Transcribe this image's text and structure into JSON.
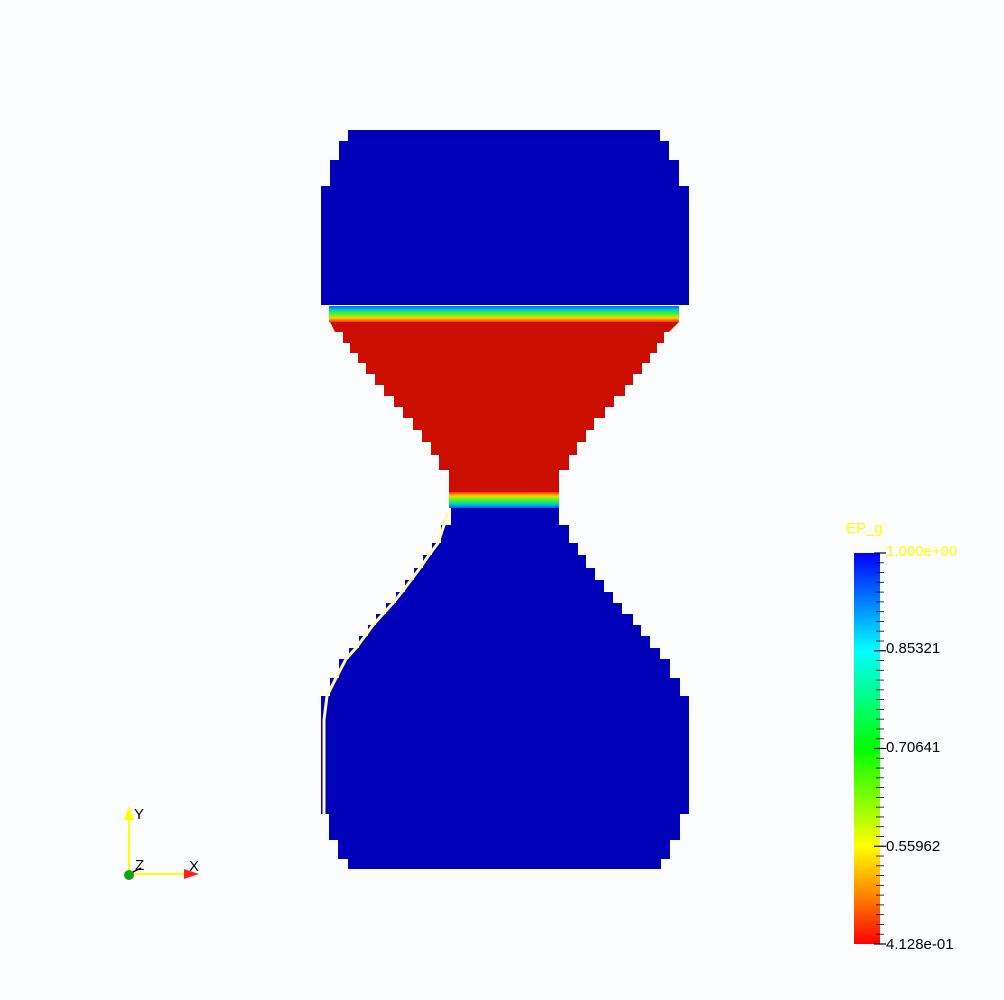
{
  "scalar_bar": {
    "title": "EP_g",
    "ticks": [
      "1.000e+00",
      "0.85321",
      "0.70641",
      "0.55962",
      "4.128e-01"
    ],
    "tick_values": [
      1.0,
      0.85321,
      0.70641,
      0.55962,
      0.4128
    ],
    "range": [
      0.4128,
      1.0
    ],
    "label_colors": {
      "title": "#ffff00",
      "top": "#ffff00",
      "mid1": "#000000",
      "mid2": "#000000",
      "mid3": "#000000",
      "bottom": "#000000"
    }
  },
  "axes": {
    "x": "X",
    "y": "Y",
    "z": "Z"
  },
  "colors": {
    "background": "#fcfdfe",
    "blue_region": "#0000b8",
    "red_region": "#cc0e00",
    "colormap": [
      "#ff0000",
      "#ff8000",
      "#ffff00",
      "#00ff00",
      "#00ffff",
      "#0000ff"
    ]
  }
}
